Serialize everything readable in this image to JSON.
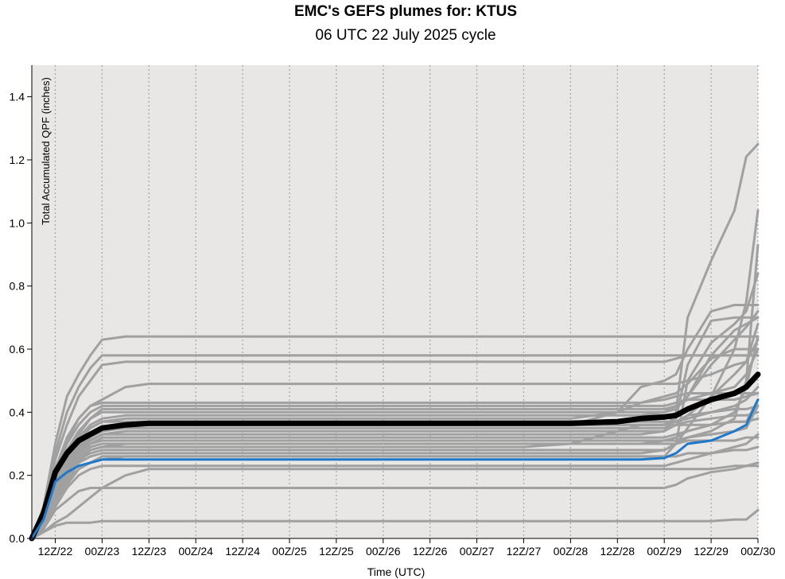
{
  "chart_data": {
    "type": "line",
    "title": "EMC's GEFS plumes for: KTUS",
    "subtitle": "06 UTC 22 July 2025 cycle",
    "xlabel": "Time (UTC)",
    "ylabel": "Total Accumulated QPF (inches)",
    "ylim": [
      0,
      1.5
    ],
    "xlim_hours": [
      6,
      192
    ],
    "yticks": [
      0.0,
      0.2,
      0.4,
      0.6,
      0.8,
      1.0,
      1.2,
      1.4
    ],
    "ytick_labels": [
      "0.0",
      "0.2",
      "0.4",
      "0.6",
      "0.8",
      "1.0",
      "1.2",
      "1.4"
    ],
    "xticks": [
      "12Z/22",
      "00Z/23",
      "12Z/23",
      "00Z/24",
      "12Z/24",
      "00Z/25",
      "12Z/25",
      "00Z/26",
      "12Z/26",
      "00Z/27",
      "12Z/27",
      "00Z/28",
      "12Z/28",
      "00Z/29",
      "12Z/29",
      "00Z/30"
    ],
    "grid": "vertical dotted lines at each x tick",
    "background": "#e8e7e6",
    "colors": {
      "members": "#a0a0a0",
      "mean": "#000000",
      "control": "#1f78c8"
    },
    "x_hours": [
      6,
      9,
      12,
      15,
      18,
      21,
      24,
      30,
      36,
      48,
      60,
      72,
      84,
      96,
      108,
      120,
      132,
      144,
      156,
      162,
      168,
      171,
      174,
      180,
      186,
      189,
      192
    ],
    "ensemble_mean": [
      0.0,
      0.08,
      0.21,
      0.27,
      0.31,
      0.33,
      0.35,
      0.36,
      0.365,
      0.365,
      0.365,
      0.365,
      0.365,
      0.365,
      0.365,
      0.365,
      0.365,
      0.365,
      0.37,
      0.38,
      0.385,
      0.39,
      0.41,
      0.44,
      0.46,
      0.48,
      0.52
    ],
    "control": [
      0.0,
      0.06,
      0.18,
      0.21,
      0.23,
      0.24,
      0.25,
      0.25,
      0.25,
      0.25,
      0.25,
      0.25,
      0.25,
      0.25,
      0.25,
      0.25,
      0.25,
      0.25,
      0.25,
      0.25,
      0.255,
      0.27,
      0.3,
      0.31,
      0.34,
      0.36,
      0.44
    ],
    "members": [
      {
        "values": [
          0.0,
          0.1,
          0.3,
          0.45,
          0.52,
          0.58,
          0.63,
          0.64,
          0.64,
          0.64,
          0.64,
          0.64,
          0.64,
          0.64,
          0.64,
          0.64,
          0.64,
          0.64,
          0.64,
          0.64,
          0.64,
          0.64,
          0.64,
          0.64,
          0.64,
          0.64,
          0.64
        ]
      },
      {
        "values": [
          0.0,
          0.09,
          0.27,
          0.4,
          0.48,
          0.54,
          0.58,
          0.58,
          0.58,
          0.58,
          0.58,
          0.58,
          0.58,
          0.58,
          0.58,
          0.58,
          0.58,
          0.58,
          0.58,
          0.58,
          0.58,
          0.58,
          0.58,
          0.58,
          0.58,
          0.58,
          0.58
        ]
      },
      {
        "values": [
          0.0,
          0.08,
          0.25,
          0.36,
          0.45,
          0.5,
          0.55,
          0.56,
          0.56,
          0.56,
          0.56,
          0.56,
          0.56,
          0.56,
          0.56,
          0.56,
          0.56,
          0.56,
          0.56,
          0.56,
          0.56,
          0.57,
          0.58,
          0.58,
          0.58,
          0.58,
          0.58
        ]
      },
      {
        "values": [
          0.0,
          0.07,
          0.22,
          0.32,
          0.38,
          0.42,
          0.43,
          0.43,
          0.43,
          0.43,
          0.43,
          0.43,
          0.43,
          0.43,
          0.43,
          0.43,
          0.43,
          0.43,
          0.43,
          0.43,
          0.44,
          0.45,
          0.46,
          0.46,
          0.46,
          0.46,
          0.46
        ]
      },
      {
        "values": [
          0.0,
          0.06,
          0.2,
          0.3,
          0.36,
          0.4,
          0.42,
          0.42,
          0.42,
          0.42,
          0.42,
          0.42,
          0.42,
          0.42,
          0.42,
          0.42,
          0.42,
          0.42,
          0.42,
          0.42,
          0.42,
          0.43,
          0.44,
          0.44,
          0.44,
          0.45,
          0.46
        ]
      },
      {
        "values": [
          0.0,
          0.06,
          0.18,
          0.26,
          0.32,
          0.36,
          0.38,
          0.39,
          0.39,
          0.39,
          0.39,
          0.39,
          0.39,
          0.39,
          0.39,
          0.39,
          0.39,
          0.39,
          0.39,
          0.39,
          0.4,
          0.42,
          0.45,
          0.55,
          0.63,
          0.67,
          0.72
        ]
      },
      {
        "values": [
          0.0,
          0.05,
          0.16,
          0.24,
          0.3,
          0.33,
          0.35,
          0.36,
          0.36,
          0.36,
          0.36,
          0.36,
          0.36,
          0.36,
          0.36,
          0.36,
          0.36,
          0.36,
          0.4,
          0.48,
          0.5,
          0.52,
          0.6,
          0.72,
          0.74,
          0.74,
          0.74
        ]
      },
      {
        "values": [
          0.0,
          0.05,
          0.15,
          0.23,
          0.28,
          0.31,
          0.33,
          0.34,
          0.34,
          0.34,
          0.34,
          0.34,
          0.34,
          0.34,
          0.34,
          0.34,
          0.34,
          0.34,
          0.34,
          0.34,
          0.34,
          0.4,
          0.7,
          0.88,
          1.04,
          1.21,
          1.25
        ]
      },
      {
        "values": [
          0.0,
          0.05,
          0.14,
          0.22,
          0.27,
          0.3,
          0.32,
          0.32,
          0.32,
          0.32,
          0.32,
          0.32,
          0.32,
          0.32,
          0.32,
          0.32,
          0.32,
          0.32,
          0.32,
          0.32,
          0.32,
          0.33,
          0.34,
          0.36,
          0.4,
          0.48,
          0.64
        ]
      },
      {
        "values": [
          0.0,
          0.04,
          0.13,
          0.2,
          0.25,
          0.27,
          0.28,
          0.28,
          0.28,
          0.28,
          0.28,
          0.28,
          0.28,
          0.28,
          0.28,
          0.28,
          0.28,
          0.28,
          0.28,
          0.28,
          0.28,
          0.3,
          0.32,
          0.34,
          0.38,
          0.5,
          0.93
        ]
      },
      {
        "values": [
          0.0,
          0.04,
          0.12,
          0.19,
          0.24,
          0.26,
          0.27,
          0.27,
          0.27,
          0.27,
          0.27,
          0.27,
          0.27,
          0.27,
          0.27,
          0.27,
          0.27,
          0.27,
          0.27,
          0.27,
          0.28,
          0.3,
          0.35,
          0.45,
          0.6,
          0.75,
          1.04
        ]
      },
      {
        "values": [
          0.0,
          0.03,
          0.11,
          0.17,
          0.22,
          0.24,
          0.26,
          0.26,
          0.26,
          0.26,
          0.26,
          0.26,
          0.26,
          0.26,
          0.26,
          0.26,
          0.26,
          0.26,
          0.26,
          0.26,
          0.26,
          0.3,
          0.5,
          0.62,
          0.68,
          0.72,
          0.84
        ]
      },
      {
        "values": [
          0.0,
          0.03,
          0.1,
          0.16,
          0.2,
          0.22,
          0.23,
          0.23,
          0.23,
          0.23,
          0.23,
          0.23,
          0.23,
          0.23,
          0.23,
          0.23,
          0.23,
          0.23,
          0.23,
          0.23,
          0.23,
          0.24,
          0.25,
          0.27,
          0.29,
          0.3,
          0.33
        ]
      },
      {
        "values": [
          0.0,
          0.03,
          0.09,
          0.12,
          0.15,
          0.16,
          0.16,
          0.16,
          0.16,
          0.16,
          0.16,
          0.16,
          0.16,
          0.16,
          0.16,
          0.16,
          0.16,
          0.16,
          0.16,
          0.16,
          0.16,
          0.17,
          0.19,
          0.21,
          0.22,
          0.23,
          0.24
        ]
      },
      {
        "values": [
          0.0,
          0.02,
          0.05,
          0.07,
          0.1,
          0.13,
          0.16,
          0.2,
          0.22,
          0.22,
          0.22,
          0.22,
          0.22,
          0.22,
          0.22,
          0.22,
          0.22,
          0.22,
          0.22,
          0.22,
          0.22,
          0.22,
          0.22,
          0.22,
          0.23,
          0.23,
          0.23
        ]
      },
      {
        "values": [
          0.0,
          0.02,
          0.04,
          0.05,
          0.05,
          0.05,
          0.055,
          0.055,
          0.055,
          0.055,
          0.055,
          0.055,
          0.055,
          0.055,
          0.055,
          0.055,
          0.055,
          0.055,
          0.055,
          0.055,
          0.055,
          0.055,
          0.055,
          0.055,
          0.06,
          0.06,
          0.09
        ]
      },
      {
        "values": [
          0.0,
          0.06,
          0.19,
          0.28,
          0.34,
          0.38,
          0.4,
          0.4,
          0.4,
          0.4,
          0.4,
          0.4,
          0.4,
          0.4,
          0.4,
          0.4,
          0.4,
          0.4,
          0.4,
          0.4,
          0.4,
          0.41,
          0.45,
          0.58,
          0.66,
          0.68,
          0.7
        ]
      },
      {
        "values": [
          0.0,
          0.05,
          0.17,
          0.25,
          0.31,
          0.35,
          0.37,
          0.37,
          0.37,
          0.37,
          0.37,
          0.37,
          0.37,
          0.37,
          0.37,
          0.37,
          0.37,
          0.37,
          0.37,
          0.37,
          0.37,
          0.37,
          0.38,
          0.4,
          0.42,
          0.44,
          0.48
        ]
      },
      {
        "values": [
          0.0,
          0.05,
          0.15,
          0.23,
          0.28,
          0.32,
          0.34,
          0.35,
          0.35,
          0.35,
          0.35,
          0.35,
          0.35,
          0.35,
          0.35,
          0.35,
          0.35,
          0.35,
          0.35,
          0.35,
          0.35,
          0.36,
          0.37,
          0.38,
          0.39,
          0.39,
          0.4
        ]
      },
      {
        "values": [
          0.0,
          0.04,
          0.13,
          0.2,
          0.25,
          0.28,
          0.29,
          0.29,
          0.29,
          0.29,
          0.29,
          0.29,
          0.29,
          0.29,
          0.29,
          0.29,
          0.29,
          0.3,
          0.34,
          0.36,
          0.36,
          0.36,
          0.36,
          0.36,
          0.37,
          0.37,
          0.38
        ]
      },
      {
        "values": [
          0.0,
          0.04,
          0.12,
          0.18,
          0.22,
          0.24,
          0.25,
          0.26,
          0.26,
          0.26,
          0.26,
          0.26,
          0.26,
          0.26,
          0.26,
          0.26,
          0.26,
          0.26,
          0.26,
          0.26,
          0.26,
          0.26,
          0.27,
          0.27,
          0.28,
          0.28,
          0.29
        ]
      },
      {
        "values": [
          0.0,
          0.05,
          0.16,
          0.26,
          0.33,
          0.38,
          0.41,
          0.41,
          0.41,
          0.41,
          0.41,
          0.41,
          0.41,
          0.41,
          0.41,
          0.41,
          0.41,
          0.41,
          0.41,
          0.41,
          0.41,
          0.42,
          0.44,
          0.46,
          0.48,
          0.52,
          0.6
        ]
      },
      {
        "values": [
          0.0,
          0.06,
          0.2,
          0.31,
          0.38,
          0.42,
          0.44,
          0.48,
          0.49,
          0.49,
          0.49,
          0.49,
          0.49,
          0.49,
          0.49,
          0.49,
          0.49,
          0.49,
          0.49,
          0.49,
          0.49,
          0.49,
          0.5,
          0.52,
          0.55,
          0.56,
          0.63
        ]
      },
      {
        "values": [
          0.0,
          0.05,
          0.17,
          0.26,
          0.32,
          0.35,
          0.37,
          0.38,
          0.38,
          0.38,
          0.38,
          0.38,
          0.38,
          0.38,
          0.38,
          0.38,
          0.38,
          0.38,
          0.4,
          0.43,
          0.45,
          0.46,
          0.49,
          0.57,
          0.6,
          0.6,
          0.6
        ]
      },
      {
        "values": [
          0.0,
          0.04,
          0.14,
          0.22,
          0.27,
          0.3,
          0.31,
          0.31,
          0.31,
          0.31,
          0.31,
          0.31,
          0.31,
          0.31,
          0.31,
          0.31,
          0.31,
          0.31,
          0.31,
          0.31,
          0.31,
          0.31,
          0.32,
          0.33,
          0.34,
          0.35,
          0.42
        ]
      },
      {
        "values": [
          0.0,
          0.03,
          0.1,
          0.18,
          0.24,
          0.28,
          0.29,
          0.3,
          0.3,
          0.3,
          0.3,
          0.3,
          0.3,
          0.3,
          0.3,
          0.3,
          0.3,
          0.3,
          0.3,
          0.3,
          0.3,
          0.3,
          0.31,
          0.31,
          0.31,
          0.32,
          0.32
        ]
      },
      {
        "values": [
          0.0,
          0.05,
          0.16,
          0.25,
          0.3,
          0.33,
          0.35,
          0.36,
          0.36,
          0.36,
          0.36,
          0.36,
          0.36,
          0.36,
          0.36,
          0.36,
          0.36,
          0.36,
          0.36,
          0.36,
          0.36,
          0.38,
          0.55,
          0.69,
          0.7,
          0.7,
          0.7
        ]
      },
      {
        "values": [
          0.0,
          0.04,
          0.14,
          0.22,
          0.28,
          0.31,
          0.33,
          0.33,
          0.33,
          0.33,
          0.33,
          0.33,
          0.33,
          0.33,
          0.33,
          0.33,
          0.33,
          0.33,
          0.33,
          0.33,
          0.34,
          0.36,
          0.39,
          0.45,
          0.52,
          0.56,
          0.68
        ]
      },
      {
        "values": [
          0.0,
          0.04,
          0.13,
          0.21,
          0.26,
          0.29,
          0.3,
          0.3,
          0.3,
          0.3,
          0.3,
          0.3,
          0.3,
          0.3,
          0.3,
          0.3,
          0.3,
          0.3,
          0.3,
          0.3,
          0.31,
          0.32,
          0.34,
          0.36,
          0.37,
          0.37,
          0.44
        ]
      },
      {
        "values": [
          0.0,
          0.05,
          0.16,
          0.24,
          0.29,
          0.33,
          0.35,
          0.36,
          0.36,
          0.36,
          0.36,
          0.36,
          0.36,
          0.36,
          0.36,
          0.36,
          0.36,
          0.36,
          0.36,
          0.36,
          0.36,
          0.37,
          0.39,
          0.4,
          0.41,
          0.41,
          0.42
        ]
      }
    ]
  }
}
